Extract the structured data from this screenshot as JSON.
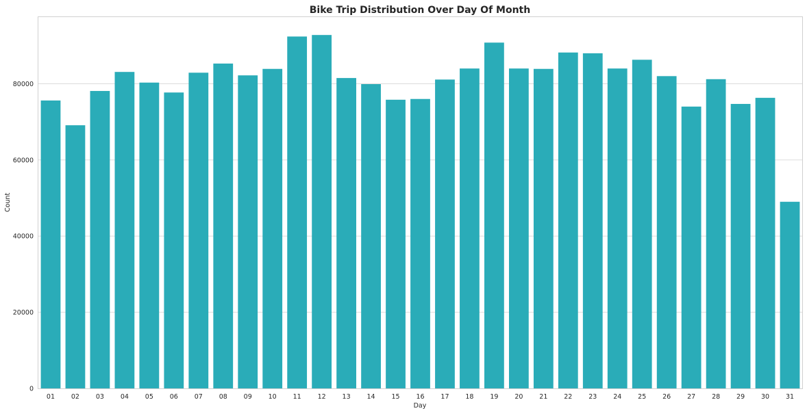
{
  "chart_data": {
    "type": "bar",
    "title": "Bike Trip Distribution Over Day Of Month",
    "xlabel": "Day",
    "ylabel": "Count",
    "ylim": [
      0,
      97500
    ],
    "yticks": [
      0,
      20000,
      40000,
      60000,
      80000
    ],
    "ytick_labels": [
      "0",
      "20000",
      "40000",
      "60000",
      "80000"
    ],
    "grid": true,
    "bar_color": "#2aacb8",
    "categories": [
      "01",
      "02",
      "03",
      "04",
      "05",
      "06",
      "07",
      "08",
      "09",
      "10",
      "11",
      "12",
      "13",
      "14",
      "15",
      "16",
      "17",
      "18",
      "19",
      "20",
      "21",
      "22",
      "23",
      "24",
      "25",
      "26",
      "27",
      "28",
      "29",
      "30",
      "31"
    ],
    "values": [
      75600,
      69100,
      78100,
      83100,
      80300,
      77700,
      82900,
      85300,
      82200,
      83900,
      92400,
      92800,
      81500,
      79900,
      75800,
      76000,
      81100,
      84000,
      90800,
      84000,
      83900,
      88200,
      88000,
      84000,
      86300,
      82000,
      74000,
      81200,
      74700,
      76300,
      49000
    ]
  }
}
